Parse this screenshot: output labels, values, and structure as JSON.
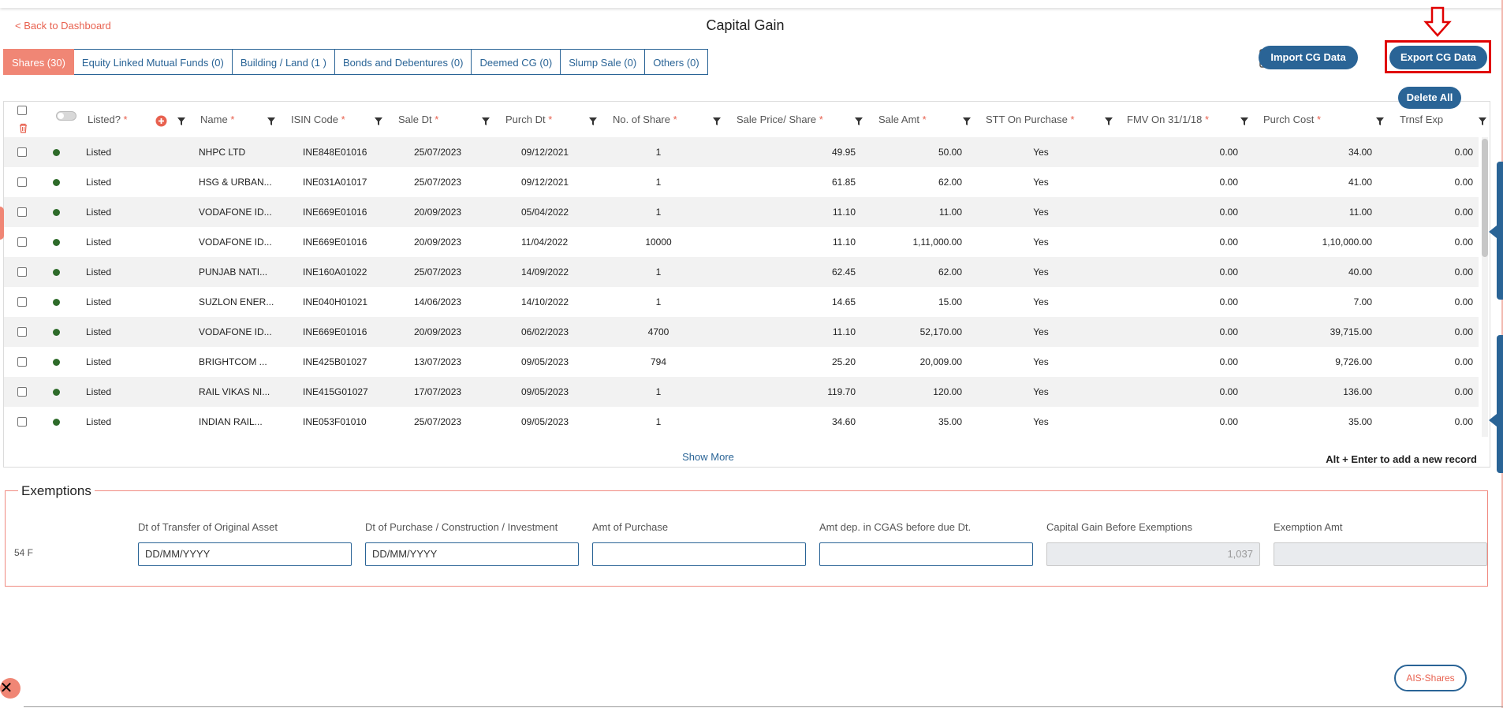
{
  "nav": {
    "back": "< Back to Dashboard"
  },
  "title": "Capital Gain",
  "tabs": [
    {
      "label": "Shares (30)"
    },
    {
      "label": "Equity Linked Mutual Funds (0)"
    },
    {
      "label": "Building / Land (1 )"
    },
    {
      "label": "Bonds and Debentures (0)"
    },
    {
      "label": "Deemed CG (0)"
    },
    {
      "label": "Slump Sale (0)"
    },
    {
      "label": "Others (0)"
    }
  ],
  "actions": {
    "import": "Import CG Data",
    "export": "Export CG Data",
    "delete_all": "Delete All"
  },
  "table": {
    "headers": {
      "listed": "Listed?",
      "name": "Name",
      "isin": "ISIN Code",
      "sale_dt": "Sale Dt",
      "purch_dt": "Purch Dt",
      "no_share": "No. of Share",
      "sale_price": "Sale Price/ Share",
      "sale_amt": "Sale Amt",
      "stt": "STT On Purchase",
      "fmv": "FMV On 31/1/18",
      "purch_cost": "Purch Cost",
      "trnsf": "Trnsf Exp"
    },
    "rows": [
      {
        "listed": "Listed",
        "name": "NHPC LTD",
        "isin": "INE848E01016",
        "sale_dt": "25/07/2023",
        "purch_dt": "09/12/2021",
        "no_share": "1",
        "sale_price": "49.95",
        "sale_amt": "50.00",
        "stt": "Yes",
        "fmv": "0.00",
        "purch_cost": "34.00",
        "trnsf": "0.00"
      },
      {
        "listed": "Listed",
        "name": "HSG & URBAN...",
        "isin": "INE031A01017",
        "sale_dt": "25/07/2023",
        "purch_dt": "09/12/2021",
        "no_share": "1",
        "sale_price": "61.85",
        "sale_amt": "62.00",
        "stt": "Yes",
        "fmv": "0.00",
        "purch_cost": "41.00",
        "trnsf": "0.00"
      },
      {
        "listed": "Listed",
        "name": "VODAFONE ID...",
        "isin": "INE669E01016",
        "sale_dt": "20/09/2023",
        "purch_dt": "05/04/2022",
        "no_share": "1",
        "sale_price": "11.10",
        "sale_amt": "11.00",
        "stt": "Yes",
        "fmv": "0.00",
        "purch_cost": "11.00",
        "trnsf": "0.00"
      },
      {
        "listed": "Listed",
        "name": "VODAFONE ID...",
        "isin": "INE669E01016",
        "sale_dt": "20/09/2023",
        "purch_dt": "11/04/2022",
        "no_share": "10000",
        "sale_price": "11.10",
        "sale_amt": "1,11,000.00",
        "stt": "Yes",
        "fmv": "0.00",
        "purch_cost": "1,10,000.00",
        "trnsf": "0.00"
      },
      {
        "listed": "Listed",
        "name": "PUNJAB NATI...",
        "isin": "INE160A01022",
        "sale_dt": "25/07/2023",
        "purch_dt": "14/09/2022",
        "no_share": "1",
        "sale_price": "62.45",
        "sale_amt": "62.00",
        "stt": "Yes",
        "fmv": "0.00",
        "purch_cost": "40.00",
        "trnsf": "0.00"
      },
      {
        "listed": "Listed",
        "name": "SUZLON ENER...",
        "isin": "INE040H01021",
        "sale_dt": "14/06/2023",
        "purch_dt": "14/10/2022",
        "no_share": "1",
        "sale_price": "14.65",
        "sale_amt": "15.00",
        "stt": "Yes",
        "fmv": "0.00",
        "purch_cost": "7.00",
        "trnsf": "0.00"
      },
      {
        "listed": "Listed",
        "name": "VODAFONE ID...",
        "isin": "INE669E01016",
        "sale_dt": "20/09/2023",
        "purch_dt": "06/02/2023",
        "no_share": "4700",
        "sale_price": "11.10",
        "sale_amt": "52,170.00",
        "stt": "Yes",
        "fmv": "0.00",
        "purch_cost": "39,715.00",
        "trnsf": "0.00"
      },
      {
        "listed": "Listed",
        "name": "BRIGHTCOM ...",
        "isin": "INE425B01027",
        "sale_dt": "13/07/2023",
        "purch_dt": "09/05/2023",
        "no_share": "794",
        "sale_price": "25.20",
        "sale_amt": "20,009.00",
        "stt": "Yes",
        "fmv": "0.00",
        "purch_cost": "9,726.00",
        "trnsf": "0.00"
      },
      {
        "listed": "Listed",
        "name": "RAIL VIKAS NI...",
        "isin": "INE415G01027",
        "sale_dt": "17/07/2023",
        "purch_dt": "09/05/2023",
        "no_share": "1",
        "sale_price": "119.70",
        "sale_amt": "120.00",
        "stt": "Yes",
        "fmv": "0.00",
        "purch_cost": "136.00",
        "trnsf": "0.00"
      },
      {
        "listed": "Listed",
        "name": "INDIAN RAIL...",
        "isin": "INE053F01010",
        "sale_dt": "25/07/2023",
        "purch_dt": "09/05/2023",
        "no_share": "1",
        "sale_price": "34.60",
        "sale_amt": "35.00",
        "stt": "Yes",
        "fmv": "0.00",
        "purch_cost": "35.00",
        "trnsf": "0.00"
      }
    ],
    "show_more": "Show More",
    "hint": "Alt + Enter to add a new record"
  },
  "exemptions": {
    "title": "Exemptions",
    "row_label": "54 F",
    "labels": {
      "transfer": "Dt of Transfer of Original Asset",
      "purchase": "Dt of Purchase / Construction / Investment",
      "amt_purchase": "Amt of Purchase",
      "cgas": "Amt dep. in CGAS before due Dt.",
      "cg_before": "Capital Gain Before Exemptions",
      "exemption_amt": "Exemption Amt"
    },
    "values": {
      "transfer_placeholder": "DD/MM/YYYY",
      "purchase_placeholder": "DD/MM/YYYY",
      "cg_before": "1,037"
    }
  },
  "footer": {
    "ais": "AIS-Shares"
  },
  "colors": {
    "primary": "#2a6496",
    "accent": "#f08675",
    "highlight": "#e00000",
    "listed_dot": "#2e6b2a"
  },
  "icons": [
    "calculator-icon",
    "filter-icon",
    "add-circle-icon",
    "trash-icon",
    "toggle-icon",
    "down-arrow-icon",
    "close-icon"
  ]
}
